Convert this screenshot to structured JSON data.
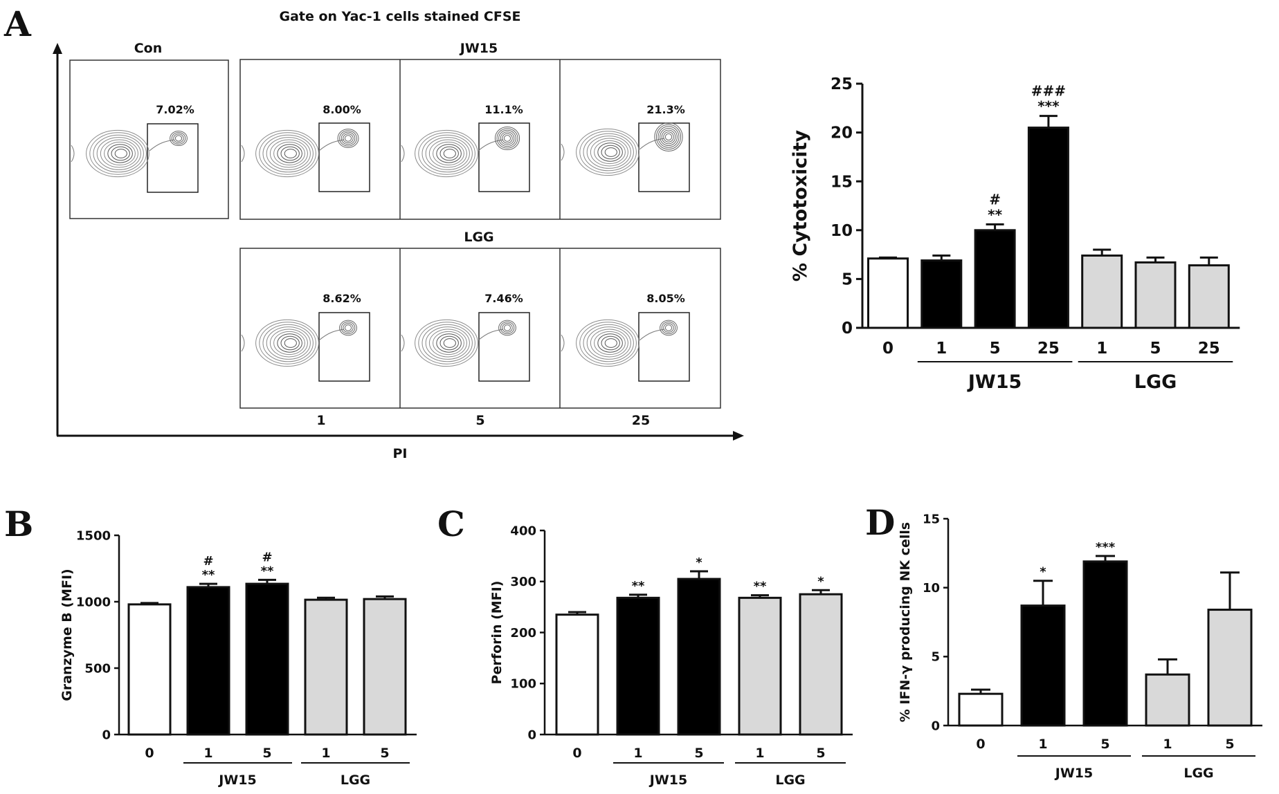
{
  "panel_labels": [
    "A",
    "B",
    "C",
    "D"
  ],
  "flow": {
    "gate_title": "Gate on Yac-1 cells stained CFSE",
    "x_axis_label": "PI",
    "row1_headers": [
      "Con",
      "JW15"
    ],
    "row2_header": "LGG",
    "dose_labels": [
      "1",
      "5",
      "25"
    ],
    "con_pct": "7.02%",
    "jw15_pcts": [
      "8.00%",
      "11.1%",
      "21.3%"
    ],
    "lgg_pcts": [
      "8.62%",
      "7.46%",
      "8.05%"
    ]
  },
  "chart_data": [
    {
      "id": "A",
      "type": "bar",
      "ylabel": "% Cytotoxicity",
      "xlabel": "",
      "ylim": [
        0,
        25
      ],
      "yticks": [
        0,
        5,
        10,
        15,
        20,
        25
      ],
      "categories": [
        "0",
        "1",
        "5",
        "25",
        "1",
        "5",
        "25"
      ],
      "values": [
        7.1,
        6.9,
        10.0,
        20.5,
        7.4,
        6.7,
        6.4
      ],
      "errors": [
        0.1,
        0.5,
        0.6,
        1.2,
        0.6,
        0.5,
        0.8
      ],
      "fills": [
        "#ffffff",
        "#000000",
        "#000000",
        "#000000",
        "#d9d9d9",
        "#d9d9d9",
        "#d9d9d9"
      ],
      "annotations": [
        [
          "",
          ""
        ],
        [
          "",
          ""
        ],
        [
          "#",
          "**"
        ],
        [
          "###",
          "***"
        ],
        [
          "",
          ""
        ],
        [
          "",
          ""
        ],
        [
          "",
          ""
        ]
      ],
      "groups": [
        {
          "label": "JW15",
          "from": 1,
          "to": 3
        },
        {
          "label": "LGG",
          "from": 4,
          "to": 6
        }
      ]
    },
    {
      "id": "B",
      "type": "bar",
      "ylabel": "Granzyme B (MFI)",
      "xlabel": "",
      "ylim": [
        0,
        1500
      ],
      "yticks": [
        0,
        500,
        1000,
        1500
      ],
      "categories": [
        "0",
        "1",
        "5",
        "1",
        "5"
      ],
      "values": [
        980,
        1110,
        1135,
        1015,
        1020
      ],
      "errors": [
        10,
        25,
        30,
        15,
        20
      ],
      "fills": [
        "#ffffff",
        "#000000",
        "#000000",
        "#d9d9d9",
        "#d9d9d9"
      ],
      "annotations": [
        [
          "",
          ""
        ],
        [
          "#",
          "**"
        ],
        [
          "#",
          "**"
        ],
        [
          "",
          ""
        ],
        [
          "",
          ""
        ]
      ],
      "groups": [
        {
          "label": "JW15",
          "from": 1,
          "to": 2
        },
        {
          "label": "LGG",
          "from": 3,
          "to": 4
        }
      ]
    },
    {
      "id": "C",
      "type": "bar",
      "ylabel": "Perforin (MFI)",
      "xlabel": "",
      "ylim": [
        0,
        400
      ],
      "yticks": [
        0,
        100,
        200,
        300,
        400
      ],
      "categories": [
        "0",
        "1",
        "5",
        "1",
        "5"
      ],
      "values": [
        235,
        268,
        305,
        268,
        275
      ],
      "errors": [
        5,
        6,
        15,
        5,
        8
      ],
      "fills": [
        "#ffffff",
        "#000000",
        "#000000",
        "#d9d9d9",
        "#d9d9d9"
      ],
      "annotations": [
        [
          "",
          ""
        ],
        [
          "",
          "**"
        ],
        [
          "",
          "*"
        ],
        [
          "",
          "**"
        ],
        [
          "",
          "*"
        ]
      ],
      "groups": [
        {
          "label": "JW15",
          "from": 1,
          "to": 2
        },
        {
          "label": "LGG",
          "from": 3,
          "to": 4
        }
      ]
    },
    {
      "id": "D",
      "type": "bar",
      "ylabel": "% IFN-γ producing NK cells",
      "xlabel": "",
      "ylim": [
        0,
        15
      ],
      "yticks": [
        0,
        5,
        10,
        15
      ],
      "categories": [
        "0",
        "1",
        "5",
        "1",
        "5"
      ],
      "values": [
        2.3,
        8.7,
        11.9,
        3.7,
        8.4
      ],
      "errors": [
        0.3,
        1.8,
        0.4,
        1.1,
        2.7
      ],
      "fills": [
        "#ffffff",
        "#000000",
        "#000000",
        "#d9d9d9",
        "#d9d9d9"
      ],
      "annotations": [
        [
          "",
          ""
        ],
        [
          "",
          "*"
        ],
        [
          "",
          "***"
        ],
        [
          "",
          ""
        ],
        [
          "",
          ""
        ]
      ],
      "groups": [
        {
          "label": "JW15",
          "from": 1,
          "to": 2
        },
        {
          "label": "LGG",
          "from": 3,
          "to": 4
        }
      ]
    }
  ]
}
